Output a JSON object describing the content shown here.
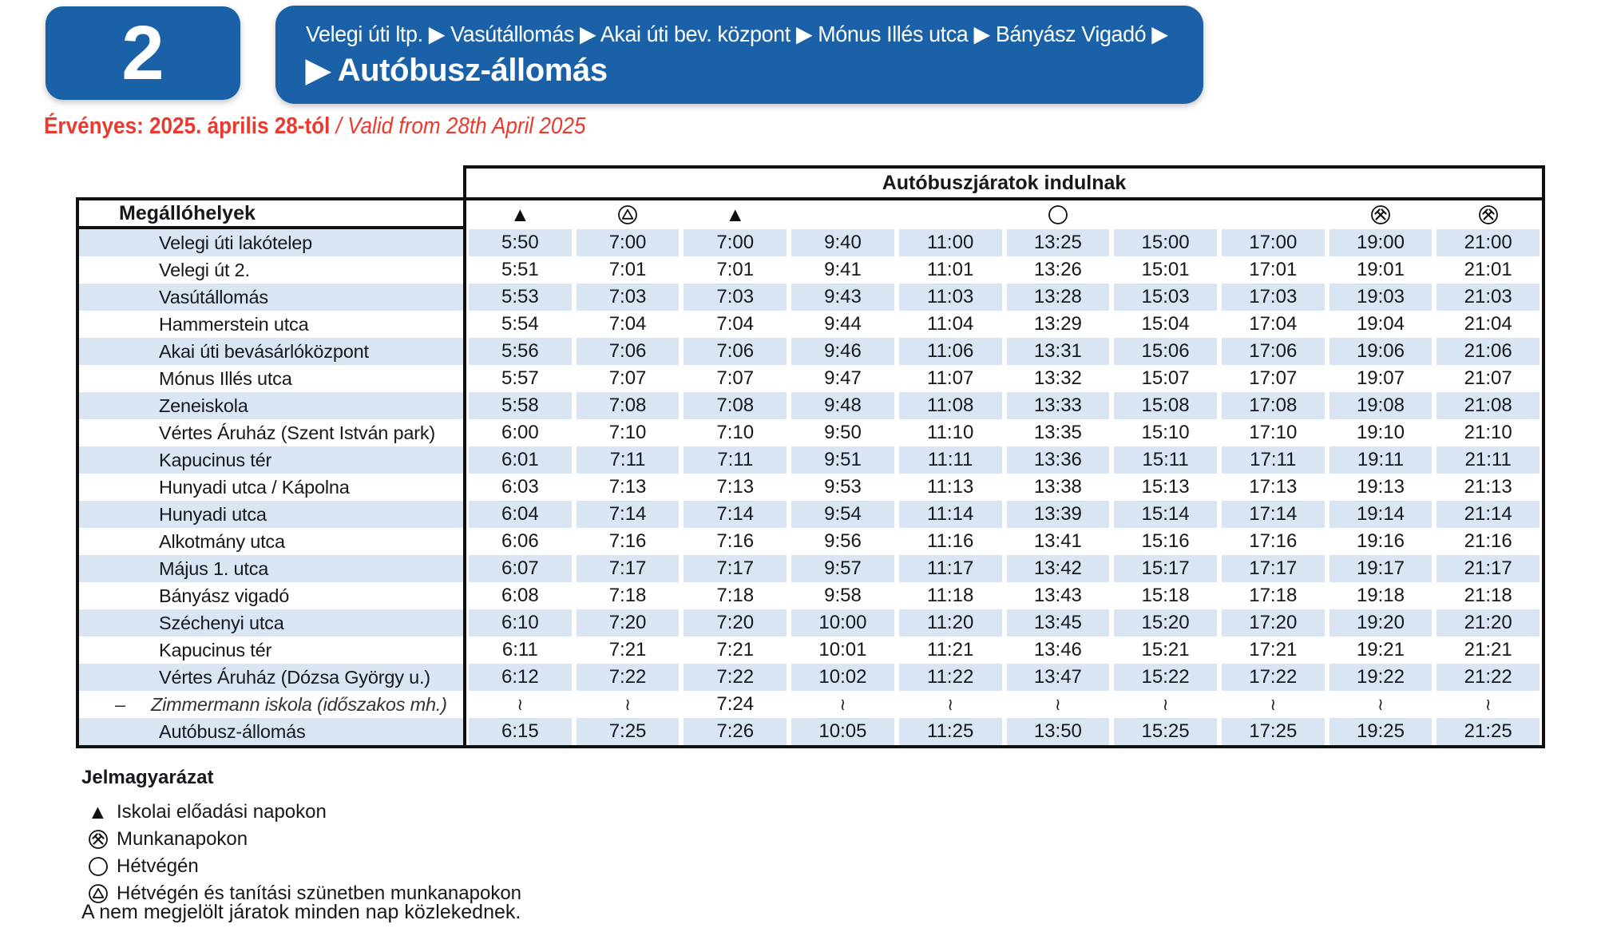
{
  "route": {
    "number": "2",
    "via": "Velegi úti ltp. ▶ Vasútállomás ▶ Akai úti bev. központ ▶ Mónus Illés utca ▶ Bányász Vigadó ▶",
    "terminus": "▶ Autóbusz-állomás"
  },
  "validity": {
    "hu": "Érvényes: 2025. április 28-tól",
    "en": " / Valid from 28th April 2025"
  },
  "timetable": {
    "departures_header": "Autóbuszjáratok indulnak",
    "stops_header": "Megállóhelyek",
    "column_symbols": [
      "triangle",
      "circle-triangle",
      "triangle",
      "",
      "",
      "circle",
      "",
      "",
      "crossed-hammers",
      "crossed-hammers"
    ],
    "skip_symbol": "≀",
    "rows": [
      {
        "name": "Velegi úti lakótelep",
        "times": [
          "5:50",
          "7:00",
          "7:00",
          "9:40",
          "11:00",
          "13:25",
          "15:00",
          "17:00",
          "19:00",
          "21:00"
        ]
      },
      {
        "name": "Velegi út 2.",
        "times": [
          "5:51",
          "7:01",
          "7:01",
          "9:41",
          "11:01",
          "13:26",
          "15:01",
          "17:01",
          "19:01",
          "21:01"
        ]
      },
      {
        "name": "Vasútállomás",
        "times": [
          "5:53",
          "7:03",
          "7:03",
          "9:43",
          "11:03",
          "13:28",
          "15:03",
          "17:03",
          "19:03",
          "21:03"
        ]
      },
      {
        "name": "Hammerstein utca",
        "times": [
          "5:54",
          "7:04",
          "7:04",
          "9:44",
          "11:04",
          "13:29",
          "15:04",
          "17:04",
          "19:04",
          "21:04"
        ]
      },
      {
        "name": "Akai úti bevásárlóközpont",
        "times": [
          "5:56",
          "7:06",
          "7:06",
          "9:46",
          "11:06",
          "13:31",
          "15:06",
          "17:06",
          "19:06",
          "21:06"
        ]
      },
      {
        "name": "Mónus Illés utca",
        "times": [
          "5:57",
          "7:07",
          "7:07",
          "9:47",
          "11:07",
          "13:32",
          "15:07",
          "17:07",
          "19:07",
          "21:07"
        ]
      },
      {
        "name": "Zeneiskola",
        "times": [
          "5:58",
          "7:08",
          "7:08",
          "9:48",
          "11:08",
          "13:33",
          "15:08",
          "17:08",
          "19:08",
          "21:08"
        ]
      },
      {
        "name": "Vértes Áruház (Szent István park)",
        "times": [
          "6:00",
          "7:10",
          "7:10",
          "9:50",
          "11:10",
          "13:35",
          "15:10",
          "17:10",
          "19:10",
          "21:10"
        ]
      },
      {
        "name": "Kapucinus tér",
        "times": [
          "6:01",
          "7:11",
          "7:11",
          "9:51",
          "11:11",
          "13:36",
          "15:11",
          "17:11",
          "19:11",
          "21:11"
        ]
      },
      {
        "name": "Hunyadi utca / Kápolna",
        "times": [
          "6:03",
          "7:13",
          "7:13",
          "9:53",
          "11:13",
          "13:38",
          "15:13",
          "17:13",
          "19:13",
          "21:13"
        ]
      },
      {
        "name": "Hunyadi utca",
        "times": [
          "6:04",
          "7:14",
          "7:14",
          "9:54",
          "11:14",
          "13:39",
          "15:14",
          "17:14",
          "19:14",
          "21:14"
        ]
      },
      {
        "name": "Alkotmány utca",
        "times": [
          "6:06",
          "7:16",
          "7:16",
          "9:56",
          "11:16",
          "13:41",
          "15:16",
          "17:16",
          "19:16",
          "21:16"
        ]
      },
      {
        "name": "Május 1. utca",
        "times": [
          "6:07",
          "7:17",
          "7:17",
          "9:57",
          "11:17",
          "13:42",
          "15:17",
          "17:17",
          "19:17",
          "21:17"
        ]
      },
      {
        "name": "Bányász vigadó",
        "times": [
          "6:08",
          "7:18",
          "7:18",
          "9:58",
          "11:18",
          "13:43",
          "15:18",
          "17:18",
          "19:18",
          "21:18"
        ]
      },
      {
        "name": "Széchenyi utca",
        "times": [
          "6:10",
          "7:20",
          "7:20",
          "10:00",
          "11:20",
          "13:45",
          "15:20",
          "17:20",
          "19:20",
          "21:20"
        ]
      },
      {
        "name": "Kapucinus tér",
        "times": [
          "6:11",
          "7:21",
          "7:21",
          "10:01",
          "11:21",
          "13:46",
          "15:21",
          "17:21",
          "19:21",
          "21:21"
        ]
      },
      {
        "name": "Vértes Áruház (Dózsa György u.)",
        "times": [
          "6:12",
          "7:22",
          "7:22",
          "10:02",
          "11:22",
          "13:47",
          "15:22",
          "17:22",
          "19:22",
          "21:22"
        ]
      },
      {
        "name": "Zimmermann iskola (időszakos mh.)",
        "prefix": "–",
        "variant": true,
        "times": [
          "≀",
          "≀",
          "7:24",
          "≀",
          "≀",
          "≀",
          "≀",
          "≀",
          "≀",
          "≀"
        ]
      },
      {
        "name": "Autóbusz-állomás",
        "times": [
          "6:15",
          "7:25",
          "7:26",
          "10:05",
          "11:25",
          "13:50",
          "15:25",
          "17:25",
          "19:25",
          "21:25"
        ]
      }
    ]
  },
  "legend": {
    "title": "Jelmagyarázat",
    "items": [
      {
        "icon": "triangle",
        "label": "Iskolai előadási napokon"
      },
      {
        "icon": "crossed-hammers",
        "label": "Munkanapokon"
      },
      {
        "icon": "circle",
        "label": "Hétvégén"
      },
      {
        "icon": "circle-triangle",
        "label": "Hétvégén és tanítási szünetben munkanapokon"
      }
    ]
  },
  "note": "A nem megjelölt járatok minden nap közlekednek.",
  "colors": {
    "brand_blue": "#1A61A8",
    "row_highlight": "#D9E5F2",
    "accent_red": "#E93A30"
  }
}
